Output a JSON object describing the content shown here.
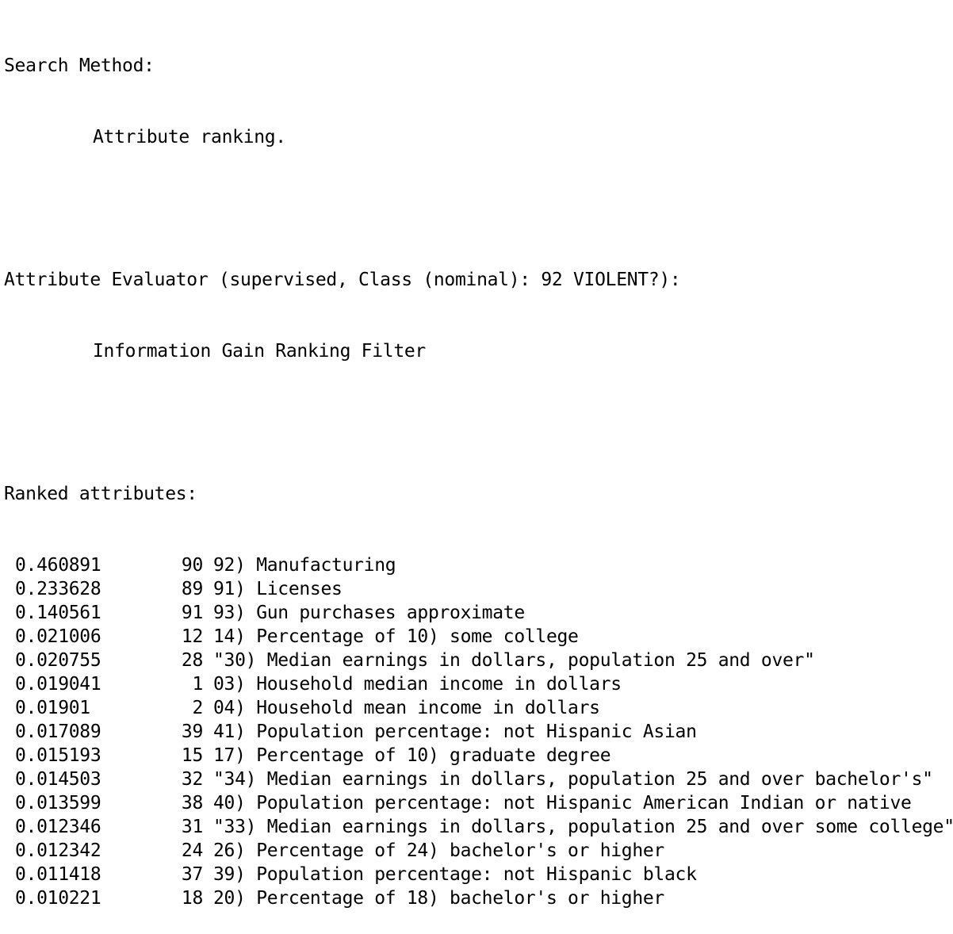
{
  "search_method_label": "Search Method:",
  "search_method_value": "Attribute ranking.",
  "evaluator_label": "Attribute Evaluator (supervised, Class (nominal): 92 VIOLENT?):",
  "evaluator_value": "Information Gain Ranking Filter",
  "ranked_label": "Ranked attributes:",
  "ranked": [
    {
      "score": "0.460891",
      "index": "90",
      "name": "92) Manufacturing"
    },
    {
      "score": "0.233628",
      "index": "89",
      "name": "91) Licenses"
    },
    {
      "score": "0.140561",
      "index": "91",
      "name": "93) Gun purchases approximate"
    },
    {
      "score": "0.021006",
      "index": "12",
      "name": "14) Percentage of 10) some college"
    },
    {
      "score": "0.020755",
      "index": "28",
      "name": "\"30) Median earnings in dollars, population 25 and over\""
    },
    {
      "score": "0.019041",
      "index": "1",
      "name": "03) Household median income in dollars"
    },
    {
      "score": "0.01901",
      "index": "2",
      "name": "04) Household mean income in dollars"
    },
    {
      "score": "0.017089",
      "index": "39",
      "name": "41) Population percentage: not Hispanic Asian"
    },
    {
      "score": "0.015193",
      "index": "15",
      "name": "17) Percentage of 10) graduate degree"
    },
    {
      "score": "0.014503",
      "index": "32",
      "name": "\"34) Median earnings in dollars, population 25 and over bachelor's\""
    },
    {
      "score": "0.013599",
      "index": "38",
      "name": "40) Population percentage: not Hispanic American Indian or native"
    },
    {
      "score": "0.012346",
      "index": "31",
      "name": "\"33) Median earnings in dollars, population 25 and over some college\""
    },
    {
      "score": "0.012342",
      "index": "24",
      "name": "26) Percentage of 24) bachelor's or higher"
    },
    {
      "score": "0.011418",
      "index": "37",
      "name": "39) Population percentage: not Hispanic black"
    },
    {
      "score": "0.010221",
      "index": "18",
      "name": "20) Percentage of 18) bachelor's or higher"
    }
  ]
}
